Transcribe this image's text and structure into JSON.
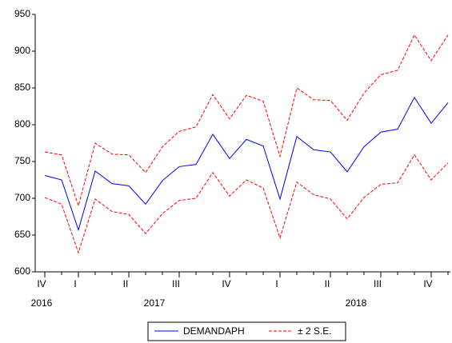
{
  "chart_data": {
    "type": "line",
    "categories": [
      "IV",
      null,
      "I",
      null,
      null,
      "II",
      null,
      null,
      "III",
      null,
      null,
      "IV",
      null,
      null,
      "I",
      null,
      null,
      "II",
      null,
      null,
      "III",
      null,
      null,
      "IV",
      null
    ],
    "year_labels": [
      "2016",
      null,
      null,
      null,
      null,
      null,
      "2017",
      null,
      null,
      null,
      null,
      null,
      null,
      null,
      null,
      null,
      null,
      null,
      "2018",
      null,
      null,
      null,
      null,
      null,
      null
    ],
    "series": [
      {
        "name": "DEMANDAPH",
        "color": "#0000ff",
        "dashed": false,
        "values": [
          731,
          725,
          657,
          737,
          720,
          717,
          692,
          724,
          743,
          746,
          787,
          754,
          780,
          771,
          699,
          784,
          766,
          763,
          736,
          770,
          790,
          794,
          837,
          802,
          830
        ]
      },
      {
        "name": "± 2 S.E.",
        "color": "#ff0000",
        "dashed": true,
        "values": [
          763,
          759,
          690,
          775,
          760,
          759,
          735,
          770,
          791,
          797,
          841,
          808,
          840,
          832,
          757,
          850,
          834,
          833,
          806,
          843,
          868,
          874,
          922,
          887,
          922
        ],
        "lower_values": [
          701,
          692,
          626,
          699,
          682,
          678,
          652,
          679,
          697,
          700,
          735,
          703,
          725,
          714,
          646,
          722,
          705,
          699,
          672,
          701,
          719,
          721,
          759,
          725,
          748
        ]
      }
    ],
    "ylim": [
      600,
      950
    ],
    "yticks": [
      600,
      650,
      700,
      750,
      800,
      850,
      900,
      950
    ],
    "grid": false
  }
}
